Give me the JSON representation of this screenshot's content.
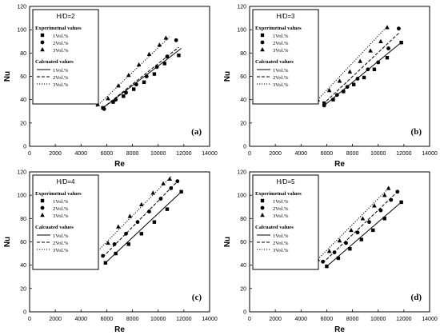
{
  "figure": {
    "legend": {
      "experimental_heading": "Experimetnal values",
      "calculated_heading": "Calcuated values",
      "series_labels": [
        "1Vol.%",
        "2Vol.%",
        "3Vol.%"
      ]
    }
  },
  "chart_data": [
    {
      "type": "scatter",
      "panel_label": "(a)",
      "case_label": "H/D=2",
      "xlabel": "Re",
      "ylabel": "Nu",
      "xlim": [
        0,
        14000
      ],
      "ylim": [
        0,
        120
      ],
      "xticks": [
        0,
        2000,
        4000,
        6000,
        8000,
        10000,
        12000,
        14000
      ],
      "yticks": [
        0,
        20,
        40,
        60,
        80,
        100,
        120
      ],
      "legend_position": "top-left",
      "series": [
        {
          "name": "1Vol.%",
          "marker": "square",
          "linestyle": "solid",
          "points": [
            [
              5700,
              33
            ],
            [
              6500,
              38
            ],
            [
              7300,
              43
            ],
            [
              8100,
              49
            ],
            [
              8900,
              55
            ],
            [
              9700,
              62
            ],
            [
              10500,
              71
            ],
            [
              11600,
              78
            ]
          ],
          "fit": [
            [
              5600,
              32
            ],
            [
              11800,
              84
            ]
          ]
        },
        {
          "name": "2Vol.%",
          "marker": "circle",
          "linestyle": "dashed",
          "points": [
            [
              5800,
              32
            ],
            [
              6700,
              40
            ],
            [
              7500,
              46
            ],
            [
              8300,
              53
            ],
            [
              9100,
              60
            ],
            [
              9900,
              68
            ],
            [
              10700,
              77
            ],
            [
              11400,
              91
            ]
          ],
          "fit": [
            [
              5700,
              33
            ],
            [
              11600,
              85
            ]
          ]
        },
        {
          "name": "3Vol.%",
          "marker": "triangle",
          "linestyle": "dotted",
          "points": [
            [
              5300,
              36
            ],
            [
              6100,
              41
            ],
            [
              6900,
              52
            ],
            [
              7700,
              61
            ],
            [
              8500,
              70
            ],
            [
              9300,
              79
            ],
            [
              10100,
              87
            ],
            [
              10600,
              93
            ]
          ],
          "fit": [
            [
              5200,
              34
            ],
            [
              10900,
              94
            ]
          ]
        }
      ]
    },
    {
      "type": "scatter",
      "panel_label": "(b)",
      "case_label": "H/D=3",
      "xlabel": "Re",
      "ylabel": "Nu",
      "xlim": [
        0,
        14000
      ],
      "ylim": [
        0,
        120
      ],
      "xticks": [
        0,
        2000,
        4000,
        6000,
        8000,
        10000,
        12000,
        14000
      ],
      "yticks": [
        0,
        20,
        40,
        60,
        80,
        100,
        120
      ],
      "legend_position": "top-left",
      "series": [
        {
          "name": "1Vol.%",
          "marker": "square",
          "linestyle": "solid",
          "points": [
            [
              5800,
              37
            ],
            [
              6500,
              40
            ],
            [
              7300,
              47
            ],
            [
              8100,
              53
            ],
            [
              8900,
              59
            ],
            [
              9700,
              66
            ],
            [
              10700,
              76
            ],
            [
              11800,
              89
            ]
          ],
          "fit": [
            [
              5800,
              35
            ],
            [
              11900,
              90
            ]
          ]
        },
        {
          "name": "2Vol.%",
          "marker": "circle",
          "linestyle": "dashed",
          "points": [
            [
              5800,
              35
            ],
            [
              6800,
              44
            ],
            [
              7600,
              51
            ],
            [
              8400,
              58
            ],
            [
              9200,
              66
            ],
            [
              10000,
              72
            ],
            [
              10800,
              84
            ],
            [
              11600,
              101
            ]
          ],
          "fit": [
            [
              5700,
              36
            ],
            [
              11600,
              97
            ]
          ]
        },
        {
          "name": "3Vol.%",
          "marker": "triangle",
          "linestyle": "dotted",
          "points": [
            [
              5300,
              40
            ],
            [
              6200,
              48
            ],
            [
              7000,
              56
            ],
            [
              7800,
              64
            ],
            [
              8600,
              73
            ],
            [
              9400,
              82
            ],
            [
              10200,
              90
            ],
            [
              10700,
              102
            ]
          ],
          "fit": [
            [
              5300,
              40
            ],
            [
              10800,
              104
            ]
          ]
        }
      ]
    },
    {
      "type": "scatter",
      "panel_label": "(c)",
      "case_label": "H/D=4",
      "xlabel": "Re",
      "ylabel": "Nu",
      "xlim": [
        0,
        14000
      ],
      "ylim": [
        0,
        120
      ],
      "xticks": [
        0,
        2000,
        4000,
        6000,
        8000,
        10000,
        12000,
        14000
      ],
      "yticks": [
        0,
        20,
        40,
        60,
        80,
        100,
        120
      ],
      "legend_position": "top-left",
      "series": [
        {
          "name": "1Vol.%",
          "marker": "square",
          "linestyle": "solid",
          "points": [
            [
              5900,
              42
            ],
            [
              6700,
              50
            ],
            [
              7700,
              58
            ],
            [
              8700,
              67
            ],
            [
              9700,
              77
            ],
            [
              10700,
              88
            ],
            [
              11800,
              103
            ]
          ],
          "fit": [
            [
              5900,
              42
            ],
            [
              11900,
              104
            ]
          ]
        },
        {
          "name": "2Vol.%",
          "marker": "circle",
          "linestyle": "dashed",
          "points": [
            [
              5700,
              48
            ],
            [
              6600,
              58
            ],
            [
              7500,
              67
            ],
            [
              8400,
              77
            ],
            [
              9300,
              86
            ],
            [
              10200,
              97
            ],
            [
              11000,
              106
            ],
            [
              11500,
              112
            ]
          ],
          "fit": [
            [
              5700,
              47
            ],
            [
              11600,
              113
            ]
          ]
        },
        {
          "name": "3Vol.%",
          "marker": "triangle",
          "linestyle": "dotted",
          "points": [
            [
              5200,
              51
            ],
            [
              6100,
              59
            ],
            [
              6900,
              73
            ],
            [
              7800,
              82
            ],
            [
              8700,
              92
            ],
            [
              9600,
              102
            ],
            [
              10400,
              110
            ],
            [
              10900,
              114
            ]
          ],
          "fit": [
            [
              5200,
              51
            ],
            [
              11000,
              116
            ]
          ]
        }
      ]
    },
    {
      "type": "scatter",
      "panel_label": "(d)",
      "case_label": "H/D=5",
      "xlabel": "Re",
      "ylabel": "Nu",
      "xlim": [
        0,
        14000
      ],
      "ylim": [
        0,
        120
      ],
      "xticks": [
        0,
        2000,
        4000,
        6000,
        8000,
        10000,
        12000,
        14000
      ],
      "yticks": [
        0,
        20,
        40,
        60,
        80,
        100,
        120
      ],
      "legend_position": "top-left",
      "series": [
        {
          "name": "1Vol.%",
          "marker": "square",
          "linestyle": "solid",
          "points": [
            [
              6000,
              39
            ],
            [
              6900,
              46
            ],
            [
              7800,
              54
            ],
            [
              8700,
              62
            ],
            [
              9600,
              70
            ],
            [
              10500,
              80
            ],
            [
              11800,
              94
            ]
          ],
          "fit": [
            [
              6000,
              39
            ],
            [
              11900,
              95
            ]
          ]
        },
        {
          "name": "2Vol.%",
          "marker": "circle",
          "linestyle": "dashed",
          "points": [
            [
              5700,
              43
            ],
            [
              6600,
              51
            ],
            [
              7500,
              59
            ],
            [
              8400,
              68
            ],
            [
              9300,
              77
            ],
            [
              10200,
              87
            ],
            [
              11000,
              96
            ],
            [
              11500,
              103
            ]
          ],
          "fit": [
            [
              5700,
              42
            ],
            [
              11600,
              104
            ]
          ]
        },
        {
          "name": "3Vol.%",
          "marker": "triangle",
          "linestyle": "dotted",
          "points": [
            [
              5300,
              45
            ],
            [
              6200,
              52
            ],
            [
              7000,
              61
            ],
            [
              7900,
              70
            ],
            [
              8800,
              80
            ],
            [
              9700,
              91
            ],
            [
              10500,
              100
            ],
            [
              10800,
              106
            ]
          ],
          "fit": [
            [
              5300,
              45
            ],
            [
              10900,
              107
            ]
          ]
        }
      ]
    }
  ]
}
